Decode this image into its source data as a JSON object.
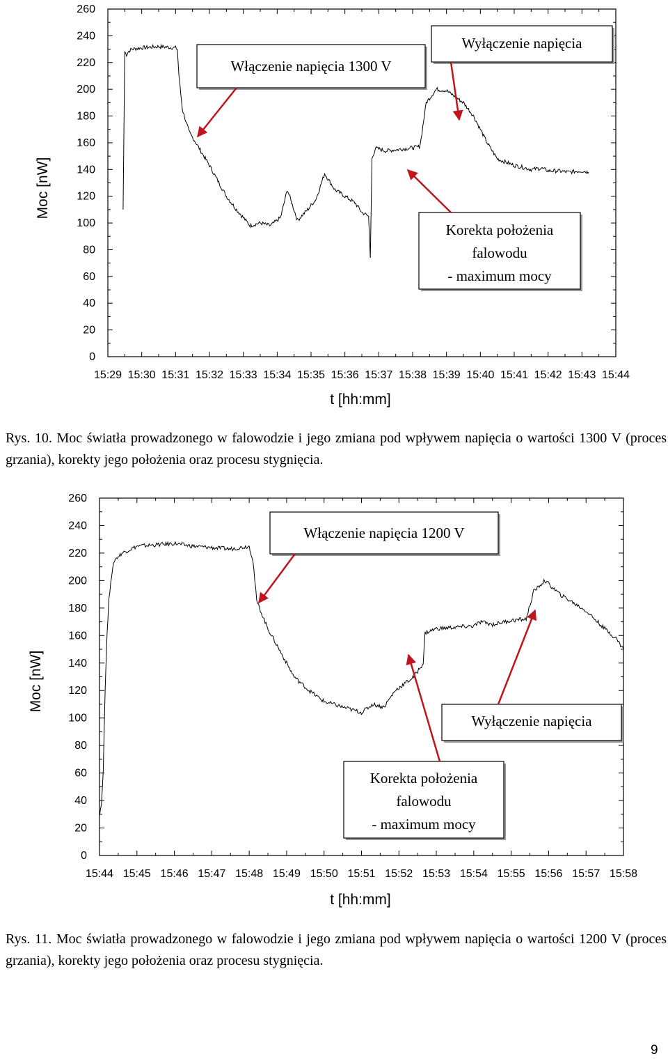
{
  "chart_data": [
    {
      "type": "line",
      "xlabel": "t [hh:mm]",
      "ylabel": "Moc [nW]",
      "x_ticks": [
        "15:29",
        "15:30",
        "15:31",
        "15:32",
        "15:33",
        "15:34",
        "15:35",
        "15:36",
        "15:37",
        "15:38",
        "15:39",
        "15:40",
        "15:41",
        "15:42",
        "15:43",
        "15:44"
      ],
      "y_ticks": [
        0,
        20,
        40,
        60,
        80,
        100,
        120,
        140,
        160,
        180,
        200,
        220,
        240,
        260
      ],
      "ylim": [
        0,
        260
      ],
      "xlim_minutes": [
        0,
        15
      ],
      "grid": false,
      "series": [
        {
          "x": [
            0.45,
            0.5,
            0.55,
            0.6,
            0.7,
            1,
            1.5,
            2,
            2.05,
            2.1,
            2.2,
            2.4,
            2.6,
            3,
            3.5,
            3.8,
            4.2,
            4.5,
            4.8,
            5.1,
            5.3,
            5.6,
            5.9,
            6.15,
            6.4,
            6.7,
            7,
            7.3,
            7.5,
            7.7,
            7.75,
            7.8,
            7.9,
            8.2,
            8.6,
            9.2,
            9.25,
            9.4,
            9.7,
            10,
            10.5,
            10.8,
            11,
            11.2,
            11.5,
            12,
            12.2,
            12.5,
            12.8,
            13,
            13.3,
            13.6,
            14,
            14.2
          ],
          "y": [
            110,
            228,
            226,
            228,
            230,
            231,
            232,
            231,
            230,
            210,
            185,
            168,
            160,
            143,
            120,
            110,
            98,
            100,
            98,
            104,
            125,
            102,
            110,
            118,
            137,
            125,
            120,
            115,
            108,
            105,
            74,
            148,
            156,
            154,
            155,
            157,
            163,
            190,
            200,
            199,
            190,
            180,
            170,
            160,
            148,
            143,
            142,
            140,
            141,
            139,
            139,
            138,
            139,
            138
          ]
        }
      ],
      "annotations": {
        "box1": "Włączenie napięcia 1300 V",
        "box2": "Wyłączenie napięcia",
        "box3_line1": "Korekta położenia",
        "box3_line2": "falowodu",
        "box3_line3": "- maximum mocy"
      }
    },
    {
      "type": "line",
      "xlabel": "t [hh:mm]",
      "ylabel": "Moc [nW]",
      "x_ticks": [
        "15:44",
        "15:45",
        "15:46",
        "15:47",
        "15:48",
        "15:49",
        "15:50",
        "15:51",
        "15:52",
        "15:53",
        "15:54",
        "15:55",
        "15:56",
        "15:57",
        "15:58"
      ],
      "y_ticks": [
        0,
        20,
        40,
        60,
        80,
        100,
        120,
        140,
        160,
        180,
        200,
        220,
        240,
        260
      ],
      "ylim": [
        0,
        260
      ],
      "xlim_minutes": [
        0,
        14
      ],
      "grid": false,
      "series": [
        {
          "x": [
            0,
            0.05,
            0.1,
            0.15,
            0.2,
            0.25,
            0.3,
            0.4,
            0.6,
            1,
            1.5,
            2,
            2.5,
            3,
            3.5,
            4,
            4.1,
            4.2,
            4.5,
            4.8,
            5.2,
            5.6,
            6,
            6.5,
            7,
            7.3,
            7.6,
            7.9,
            8.4,
            8.65,
            8.7,
            9,
            10,
            10.2,
            10.5,
            11,
            11.4,
            11.6,
            11.9,
            12.3,
            13,
            13.5,
            13.8,
            14
          ],
          "y": [
            30,
            37,
            62,
            120,
            160,
            185,
            200,
            215,
            220,
            225,
            226,
            227,
            225,
            224,
            223,
            225,
            215,
            185,
            165,
            150,
            130,
            120,
            112,
            108,
            104,
            110,
            108,
            120,
            130,
            140,
            162,
            165,
            167,
            170,
            168,
            171,
            172,
            192,
            200,
            190,
            178,
            165,
            158,
            150
          ]
        }
      ],
      "annotations": {
        "box1": "Włączenie napięcia 1200 V",
        "box2": "Wyłączenie napięcia",
        "box3_line1": "Korekta położenia",
        "box3_line2": "falowodu",
        "box3_line3": "- maximum mocy"
      }
    }
  ],
  "captions": {
    "fig10": "Rys. 10. Moc światła prowadzonego w falowodzie i jego zmiana pod wpływem napięcia o wartości 1300 V (proces grzania), korekty jego położenia oraz procesu stygnięcia.",
    "fig11": "Rys. 11. Moc światła prowadzonego w falowodzie i jego zmiana pod wpływem napięcia o wartości 1200 V (proces grzania), korekty jego położenia oraz procesu stygnięcia."
  },
  "page_number": "9",
  "colors": {
    "arrow": "#c0141e",
    "line": "#000000"
  }
}
